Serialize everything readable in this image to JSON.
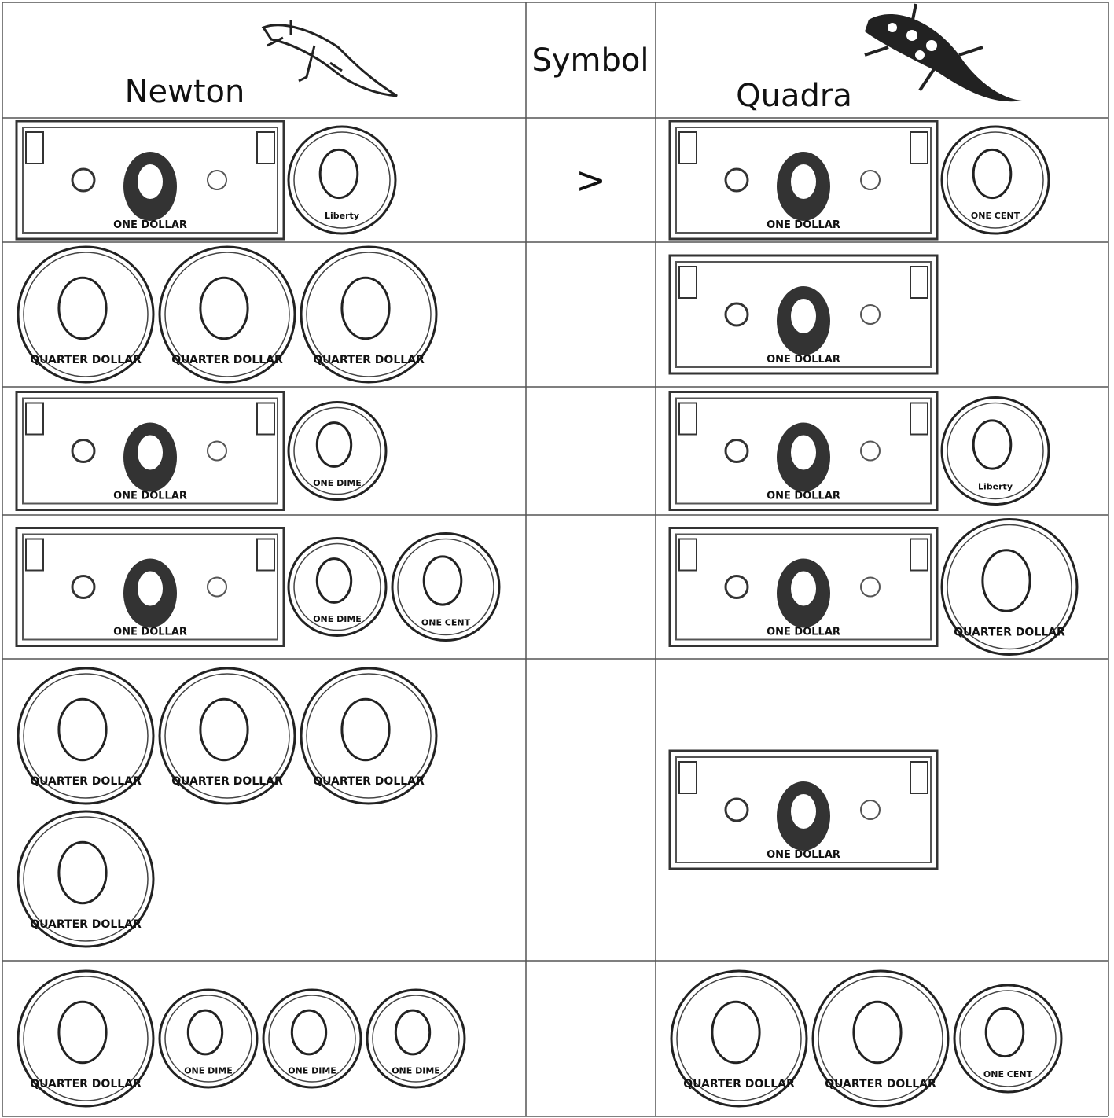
{
  "header": {
    "left": "Newton",
    "middle": "Symbol",
    "right": "Quadra"
  },
  "rows": [
    {
      "newton": [
        "ONE DOLLAR",
        "Liberty"
      ],
      "symbol": ">",
      "quadra": [
        "ONE DOLLAR",
        "ONE CENT"
      ]
    },
    {
      "newton": [
        "QUARTER DOLLAR",
        "QUARTER DOLLAR",
        "QUARTER DOLLAR"
      ],
      "quadra": [
        "ONE DOLLAR"
      ]
    },
    {
      "newton": [
        "ONE DOLLAR",
        "ONE DIME"
      ],
      "quadra": [
        "ONE DOLLAR",
        "Liberty"
      ]
    },
    {
      "newton": [
        "ONE DOLLAR",
        "ONE DIME",
        "ONE CENT"
      ],
      "quadra": [
        "ONE DOLLAR",
        "QUARTER DOLLAR"
      ]
    },
    {
      "newton": [
        "QUARTER DOLLAR",
        "QUARTER DOLLAR",
        "QUARTER DOLLAR",
        "QUARTER DOLLAR"
      ],
      "quadra": [
        "ONE DOLLAR"
      ]
    },
    {
      "newton": [
        "QUARTER DOLLAR",
        "ONE DIME",
        "ONE DIME",
        "ONE DIME"
      ],
      "quadra": [
        "QUARTER DOLLAR",
        "QUARTER DOLLAR",
        "ONE CENT"
      ]
    }
  ]
}
